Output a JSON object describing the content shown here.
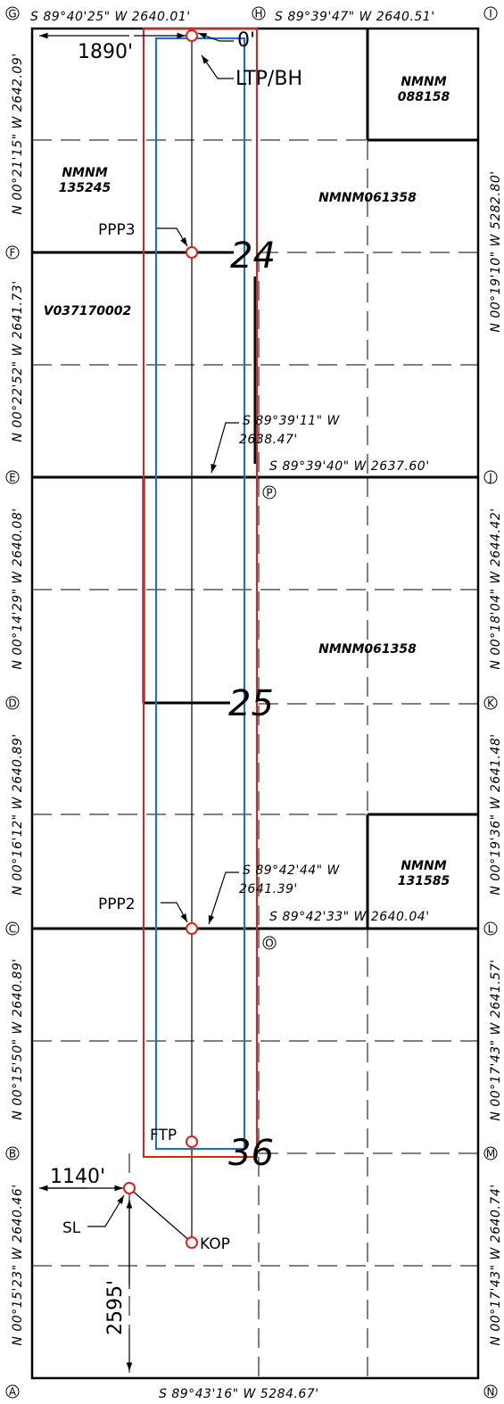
{
  "corners": {
    "A": "A",
    "B": "B",
    "C": "C",
    "D": "D",
    "E": "E",
    "F": "F",
    "G": "G",
    "H": "H",
    "I": "I",
    "J": "J",
    "K": "K",
    "L": "L",
    "M": "M",
    "N": "N",
    "O": "O",
    "P": "P"
  },
  "bearings": {
    "top_left": "S 89°40'25\" W 2640.01'",
    "top_right": "S 89°39'47\" W 2640.51'",
    "bottom": "S 89°43'16\" W 5284.67'",
    "left_gf": "N 00°21'15\" W 2642.09'",
    "left_fe": "N 00°22'52\" W 2641.73'",
    "left_ed": "N 00°14'29\" W 2640.08'",
    "left_dc": "N 00°16'12\" W 2640.89'",
    "left_cb": "N 00°15'50\" W 2640.89'",
    "left_ba": "N 00°15'23\" W 2640.46'",
    "right_ij": "N 00°19'10\" W 5282.80'",
    "right_jk": "N 00°18'04\" W 2644.42'",
    "right_kl": "N 00°19'36\" W 2641.48'",
    "right_lm": "N 00°17'43\" W 2641.57'",
    "right_mn": "N 00°17'43\" W 2640.74'",
    "line_p_1": "S 89°39'11\" W",
    "line_p_2": "2638.47'",
    "line_p_3": "S 89°39'40\" W 2637.60'",
    "line_o_1": "S 89°42'44\" W",
    "line_o_2": "2641.39'",
    "line_o_3": "S 89°42'33\" W 2640.04'"
  },
  "dimensions": {
    "top_offset": "1890'",
    "top_zero": "0'",
    "sl_offset": "1140'",
    "sl_vertical": "2595'"
  },
  "points": {
    "ltp": "LTP/BH",
    "ppp3": "PPP3",
    "ppp2": "PPP2",
    "ftp": "FTP",
    "sl": "SL",
    "kop": "KOP"
  },
  "sections": {
    "s24": "24",
    "s25": "25",
    "s36": "36"
  },
  "leases": {
    "nmnm088158_1": "NMNM",
    "nmnm088158_2": "088158",
    "nmnm135245_1": "NMNM",
    "nmnm135245_2": "135245",
    "nmnm061358_a": "NMNM061358",
    "v037170002": "V037170002",
    "nmnm061358_b": "NMNM061358",
    "nmnm131585_1": "NMNM",
    "nmnm131585_2": "131585"
  },
  "colors": {
    "line": "#000000",
    "project_area": "#e0211b",
    "producing_area": "#1f6fd1"
  }
}
